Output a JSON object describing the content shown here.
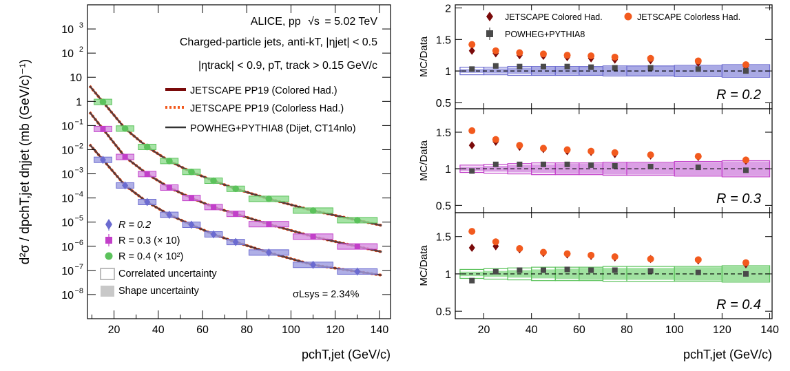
{
  "header": {
    "experiment": "ALICE, pp",
    "energy": "= 5.02 TeV",
    "jets_line": "Charged-particle jets, anti-kT, |ηjet| < 0.5",
    "track_line": "|ηtrack| < 0.9,     pT, track > 0.15 GeV/c"
  },
  "legend_models": [
    {
      "label": "JETSCAPE PP19 (Colored Had.)",
      "color": "#7a0a0a",
      "style": "solid"
    },
    {
      "label": "JETSCAPE PP19 (Colorless Had.)",
      "color": "#f25a1e",
      "style": "dotted"
    },
    {
      "label": "POWHEG+PYTHIA8 (Dijet, CT14nlo)",
      "color": "#333333",
      "style": "solid"
    }
  ],
  "legend_data": [
    {
      "label": "R = 0.2",
      "color": "#6b6bd0",
      "marker": "diamond"
    },
    {
      "label": "R = 0.3 (× 10)",
      "color": "#c23fc9",
      "marker": "square"
    },
    {
      "label": "R = 0.4 (× 10²)",
      "color": "#5bc25b",
      "marker": "circle"
    }
  ],
  "legend_unc": {
    "correlated": "Correlated uncertainty",
    "shape": "Shape uncertainty"
  },
  "sigma_label": "σLsys = 2.34%",
  "colors": {
    "r02": "#6b6bd0",
    "r02_fill": "#9b9be0",
    "r03": "#c23fc9",
    "r03_fill": "#d58ee0",
    "r04": "#5bc25b",
    "r04_fill": "#8fdc8f",
    "colored": "#7a0a0a",
    "colorless": "#f25a1e",
    "powheg": "#4a4a4a"
  },
  "chart_data": [
    {
      "type": "scatter",
      "panel": "spectrum",
      "ylabel": "d²σ / dpchT,jet dηjet (mb (GeV/c)⁻¹)",
      "xlabel": "pchT,jet (GeV/c)",
      "yscale": "log",
      "xlim": [
        8,
        145
      ],
      "ylim": [
        1e-09,
        10000.0
      ],
      "x_ticks": [
        20,
        40,
        60,
        80,
        100,
        120,
        140
      ],
      "y_ticks": [
        {
          "v": 1e-08,
          "base": "10",
          "exp": "−8"
        },
        {
          "v": 1e-07,
          "base": "10",
          "exp": "−7"
        },
        {
          "v": 1e-06,
          "base": "10",
          "exp": "−6"
        },
        {
          "v": 1e-05,
          "base": "10",
          "exp": "−5"
        },
        {
          "v": 0.0001,
          "base": "10",
          "exp": "−4"
        },
        {
          "v": 0.001,
          "base": "10",
          "exp": "−3"
        },
        {
          "v": 0.01,
          "base": "10",
          "exp": "−2"
        },
        {
          "v": 0.1,
          "base": "10",
          "exp": "−1"
        },
        {
          "v": 1,
          "base": "1",
          "exp": ""
        },
        {
          "v": 10,
          "base": "10",
          "exp": ""
        },
        {
          "v": 100,
          "base": "10",
          "exp": "2"
        },
        {
          "v": 1000,
          "base": "10",
          "exp": "3"
        }
      ],
      "bins": [
        [
          10,
          20
        ],
        [
          20,
          30
        ],
        [
          30,
          40
        ],
        [
          40,
          50
        ],
        [
          50,
          60
        ],
        [
          60,
          70
        ],
        [
          70,
          80
        ],
        [
          80,
          100
        ],
        [
          100,
          120
        ],
        [
          120,
          140
        ]
      ],
      "x": [
        15,
        25,
        35,
        45,
        55,
        65,
        75,
        90,
        110,
        130
      ],
      "series": [
        {
          "name": "R = 0.2",
          "values": [
            0.0038,
            0.00033,
            6.8e-05,
            2e-05,
            7.8e-06,
            3.1e-06,
            1.5e-06,
            5.5e-07,
            1.7e-07,
            9e-08
          ]
        },
        {
          "name": "R = 0.3 (× 10)",
          "values": [
            0.072,
            0.005,
            0.00098,
            0.00027,
            0.0001,
            4.2e-05,
            2.2e-05,
            8.2e-06,
            2.5e-06,
            9.8e-07
          ]
        },
        {
          "name": "R = 0.4 (× 10²)",
          "values": [
            0.95,
            0.075,
            0.013,
            0.0034,
            0.0012,
            0.00052,
            0.00024,
            9.2e-05,
            3e-05,
            1.2e-05
          ]
        }
      ]
    },
    {
      "type": "scatter",
      "panel": "ratio",
      "xlabel": "pchT,jet (GeV/c)",
      "x_ticks": [
        20,
        40,
        60,
        80,
        100,
        120,
        140
      ],
      "xlim": [
        8,
        141
      ],
      "x": [
        15,
        25,
        35,
        45,
        55,
        65,
        75,
        90,
        110,
        130
      ],
      "legend": [
        "JETSCAPE Colored Had.",
        "JETSCAPE Colorless Had.",
        "POWHEG+PYTHIA8"
      ],
      "subplots": [
        {
          "label": "R = 0.2",
          "ylabel": "MC/Data",
          "ylim": [
            0.4,
            2.05
          ],
          "y_ticks": [
            "0.5",
            "1",
            "1.5",
            "2"
          ],
          "y_tick_values": [
            0.5,
            1,
            1.5,
            2
          ],
          "colored": [
            1.32,
            1.28,
            1.25,
            1.24,
            1.22,
            1.2,
            1.18,
            1.17,
            1.13,
            1.07
          ],
          "colorless": [
            1.42,
            1.32,
            1.29,
            1.27,
            1.25,
            1.24,
            1.22,
            1.2,
            1.16,
            1.1
          ],
          "powheg": [
            1.03,
            1.08,
            1.07,
            1.07,
            1.07,
            1.06,
            1.05,
            1.05,
            1.03,
            1.0
          ],
          "correlated_unc": [
            0.06,
            0.06,
            0.07,
            0.07,
            0.07,
            0.07,
            0.08,
            0.08,
            0.09,
            0.1
          ],
          "shape_unc": [
            0.03,
            0.04,
            0.05,
            0.06,
            0.06,
            0.07,
            0.07,
            0.08,
            0.08,
            0.09
          ]
        },
        {
          "label": "R = 0.3",
          "ylabel": "MC/Data",
          "ylim": [
            0.4,
            1.82
          ],
          "y_ticks": [
            "0.5",
            "1",
            "1.5"
          ],
          "y_tick_values": [
            0.5,
            1,
            1.5
          ],
          "colored": [
            1.32,
            1.37,
            1.3,
            1.27,
            1.24,
            1.23,
            1.2,
            1.18,
            1.16,
            1.11
          ],
          "colorless": [
            1.52,
            1.4,
            1.32,
            1.28,
            1.26,
            1.24,
            1.22,
            1.19,
            1.17,
            1.12
          ],
          "powheg": [
            0.97,
            1.06,
            1.06,
            1.06,
            1.06,
            1.05,
            1.04,
            1.03,
            1.02,
            0.98
          ],
          "correlated_unc": [
            0.05,
            0.06,
            0.07,
            0.08,
            0.08,
            0.08,
            0.09,
            0.09,
            0.1,
            0.11
          ],
          "shape_unc": [
            0.03,
            0.04,
            0.05,
            0.06,
            0.07,
            0.07,
            0.08,
            0.08,
            0.09,
            0.1
          ]
        },
        {
          "label": "R = 0.4",
          "ylabel": "MC/Data",
          "ylim": [
            0.4,
            1.82
          ],
          "y_ticks": [
            "0.5",
            "1",
            "1.5"
          ],
          "y_tick_values": [
            0.5,
            1,
            1.5
          ],
          "colored": [
            1.35,
            1.37,
            1.33,
            1.28,
            1.26,
            1.24,
            1.22,
            1.2,
            1.18,
            1.13
          ],
          "colorless": [
            1.57,
            1.43,
            1.34,
            1.29,
            1.27,
            1.25,
            1.23,
            1.2,
            1.19,
            1.15
          ],
          "powheg": [
            0.91,
            1.03,
            1.05,
            1.05,
            1.06,
            1.05,
            1.05,
            1.04,
            1.02,
            1.0
          ],
          "correlated_unc": [
            0.06,
            0.07,
            0.08,
            0.09,
            0.09,
            0.09,
            0.1,
            0.1,
            0.1,
            0.11
          ],
          "shape_unc": [
            0.03,
            0.04,
            0.05,
            0.06,
            0.07,
            0.08,
            0.08,
            0.08,
            0.09,
            0.1
          ]
        }
      ]
    }
  ]
}
